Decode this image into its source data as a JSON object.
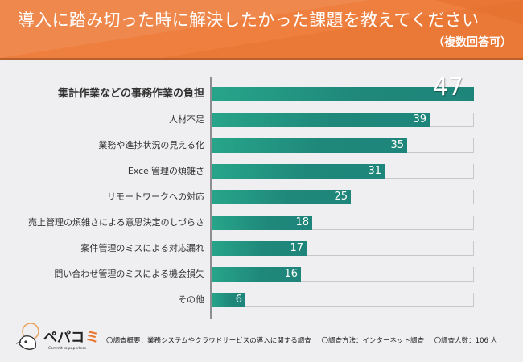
{
  "header": {
    "title": "導入に踏み切った時に解決したかった課題を教えてください",
    "subtitle": "（複数回答可）"
  },
  "colors": {
    "header": "#EE7F3F",
    "bar_start": "#27A58A",
    "bar_end": "#1E857A",
    "background": "#EFEFF2"
  },
  "chart_data": {
    "type": "bar",
    "orientation": "horizontal",
    "title": "導入に踏み切った時に解決したかった課題を教えてください",
    "subtitle": "（複数回答可）",
    "categories": [
      "集計作業などの事務作業の負担",
      "人材不足",
      "業務や進捗状況の見える化",
      "Excel管理の煩雑さ",
      "リモートワークへの対応",
      "売上管理の煩雑さによる意思決定のしづらさ",
      "案件管理のミスによる対応漏れ",
      "問い合わせ管理のミスによる機会損失",
      "その他"
    ],
    "values": [
      47,
      39,
      35,
      31,
      25,
      18,
      17,
      16,
      6
    ],
    "value_labels": [
      "47",
      "39",
      "35",
      "31",
      "25",
      "18",
      "17",
      "16",
      "6"
    ],
    "xlim": [
      0,
      47
    ],
    "xlabel": "",
    "ylabel": "",
    "grid": false
  },
  "footer": {
    "overview": "〇調査概要：業務システムやクラウドサービスの導入に関する調査",
    "method": "〇調査方法：インターネット調査",
    "count": "〇調査人数：106 人"
  },
  "logo": {
    "name": "ペパコミ",
    "tagline": "Commit to paperless"
  }
}
